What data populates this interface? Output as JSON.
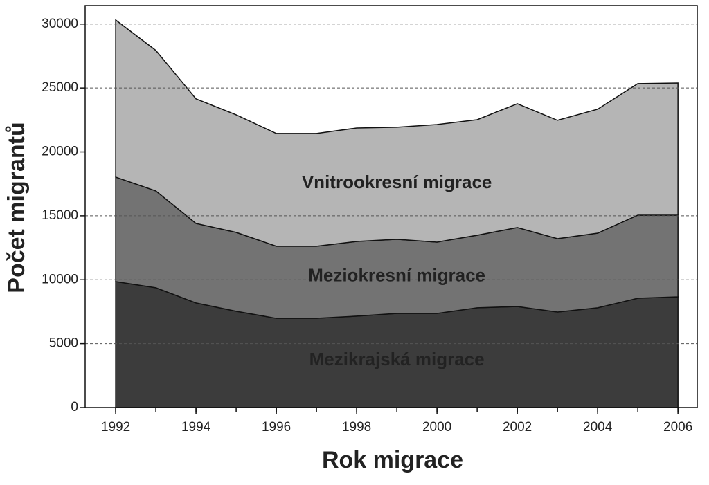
{
  "chart_data": {
    "type": "stacked-area",
    "x_label": "Rok migrace",
    "y_label": "Počet migrantů",
    "x": [
      1992,
      1993,
      1994,
      1995,
      1996,
      1997,
      1998,
      1999,
      2000,
      2001,
      2002,
      2003,
      2004,
      2005,
      2006
    ],
    "series": [
      {
        "name": "Mezikrajská migrace",
        "color": "#3c3c3c",
        "values": [
          9850,
          9370,
          8180,
          7530,
          6980,
          6980,
          7150,
          7360,
          7360,
          7800,
          7900,
          7470,
          7800,
          8550,
          8660
        ]
      },
      {
        "name": "Meziokresní migrace",
        "color": "#737373",
        "values": [
          8180,
          7580,
          6220,
          6170,
          5640,
          5640,
          5840,
          5800,
          5580,
          5680,
          6180,
          5740,
          5840,
          6500,
          6390
        ]
      },
      {
        "name": "Vnitrookresní migrace",
        "color": "#b5b5b5",
        "values": [
          12290,
          10990,
          9750,
          9200,
          8820,
          8820,
          8880,
          8770,
          9200,
          9040,
          9690,
          9260,
          9700,
          10290,
          10340
        ]
      }
    ],
    "xlim": [
      1991.24,
      2006.48
    ],
    "xticks": [
      1992,
      1994,
      1996,
      1998,
      2000,
      2002,
      2004,
      2006
    ],
    "ylim": [
      0,
      31450
    ],
    "yticks": [
      0,
      5000,
      10000,
      15000,
      20000,
      25000,
      30000
    ],
    "grid": true
  }
}
